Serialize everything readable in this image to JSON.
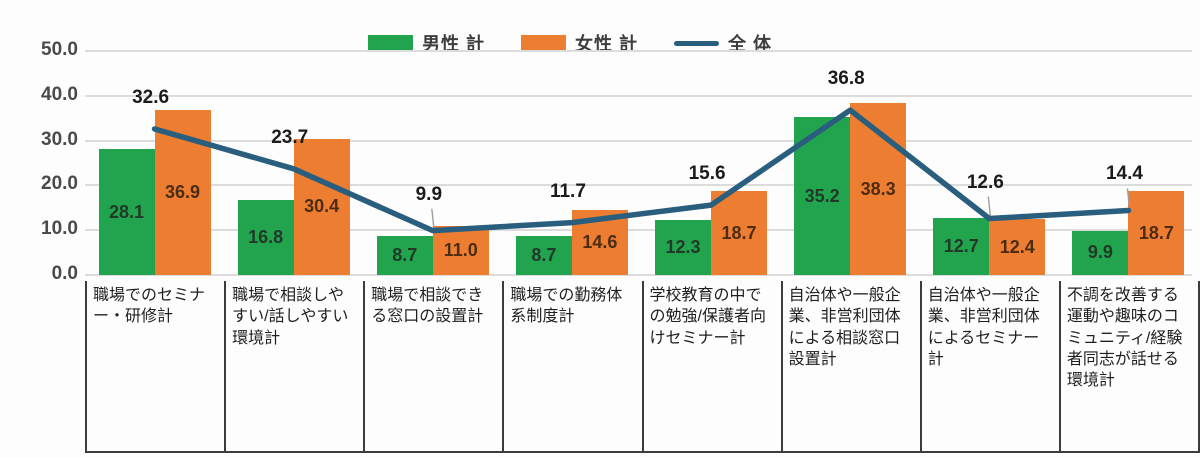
{
  "chart_data": {
    "type": "bar",
    "subtype": "grouped-bar-with-line-overlay",
    "categories": [
      "職場でのセミナー・研修計",
      "職場で相談しやすい/話しやすい環境計",
      "職場で相談できる窓口の設置計",
      "職場での勤務体系制度計",
      "学校教育の中での勉強/保護者向けセミナー計",
      "自治体や一般企業、非営利団体による相談窓口設置計",
      "自治体や一般企業、非営利団体によるセミナー計",
      "不調を改善する運動や趣味のコミュニティ/経験者同志が話せる環境計"
    ],
    "series": [
      {
        "name": "男性 計",
        "type": "bar",
        "color": "#22a34d",
        "label_color": "#203a27",
        "values": [
          28.1,
          16.8,
          8.7,
          8.7,
          12.3,
          35.2,
          12.7,
          9.9
        ]
      },
      {
        "name": "女性 計",
        "type": "bar",
        "color": "#ec7d31",
        "label_color": "#4d2c12",
        "values": [
          36.9,
          30.4,
          11.0,
          14.6,
          18.7,
          38.3,
          12.4,
          18.7
        ]
      },
      {
        "name": "全 体",
        "type": "line",
        "color": "#2a5e7f",
        "label_color": "#1b1b1b",
        "values": [
          32.6,
          23.7,
          9.9,
          11.7,
          15.6,
          36.8,
          12.6,
          14.4
        ]
      }
    ],
    "title": "",
    "xlabel": "",
    "ylabel": "",
    "ylim": [
      0,
      50
    ],
    "y_ticks": [
      "0.0",
      "10.0",
      "20.0",
      "30.0",
      "40.0",
      "50.0"
    ],
    "grid": true,
    "legend_position": "top",
    "leader_line_points": [
      2,
      6,
      7
    ],
    "gridline_color": "#dcdcdc",
    "leader_color": "#9d9d9d"
  }
}
